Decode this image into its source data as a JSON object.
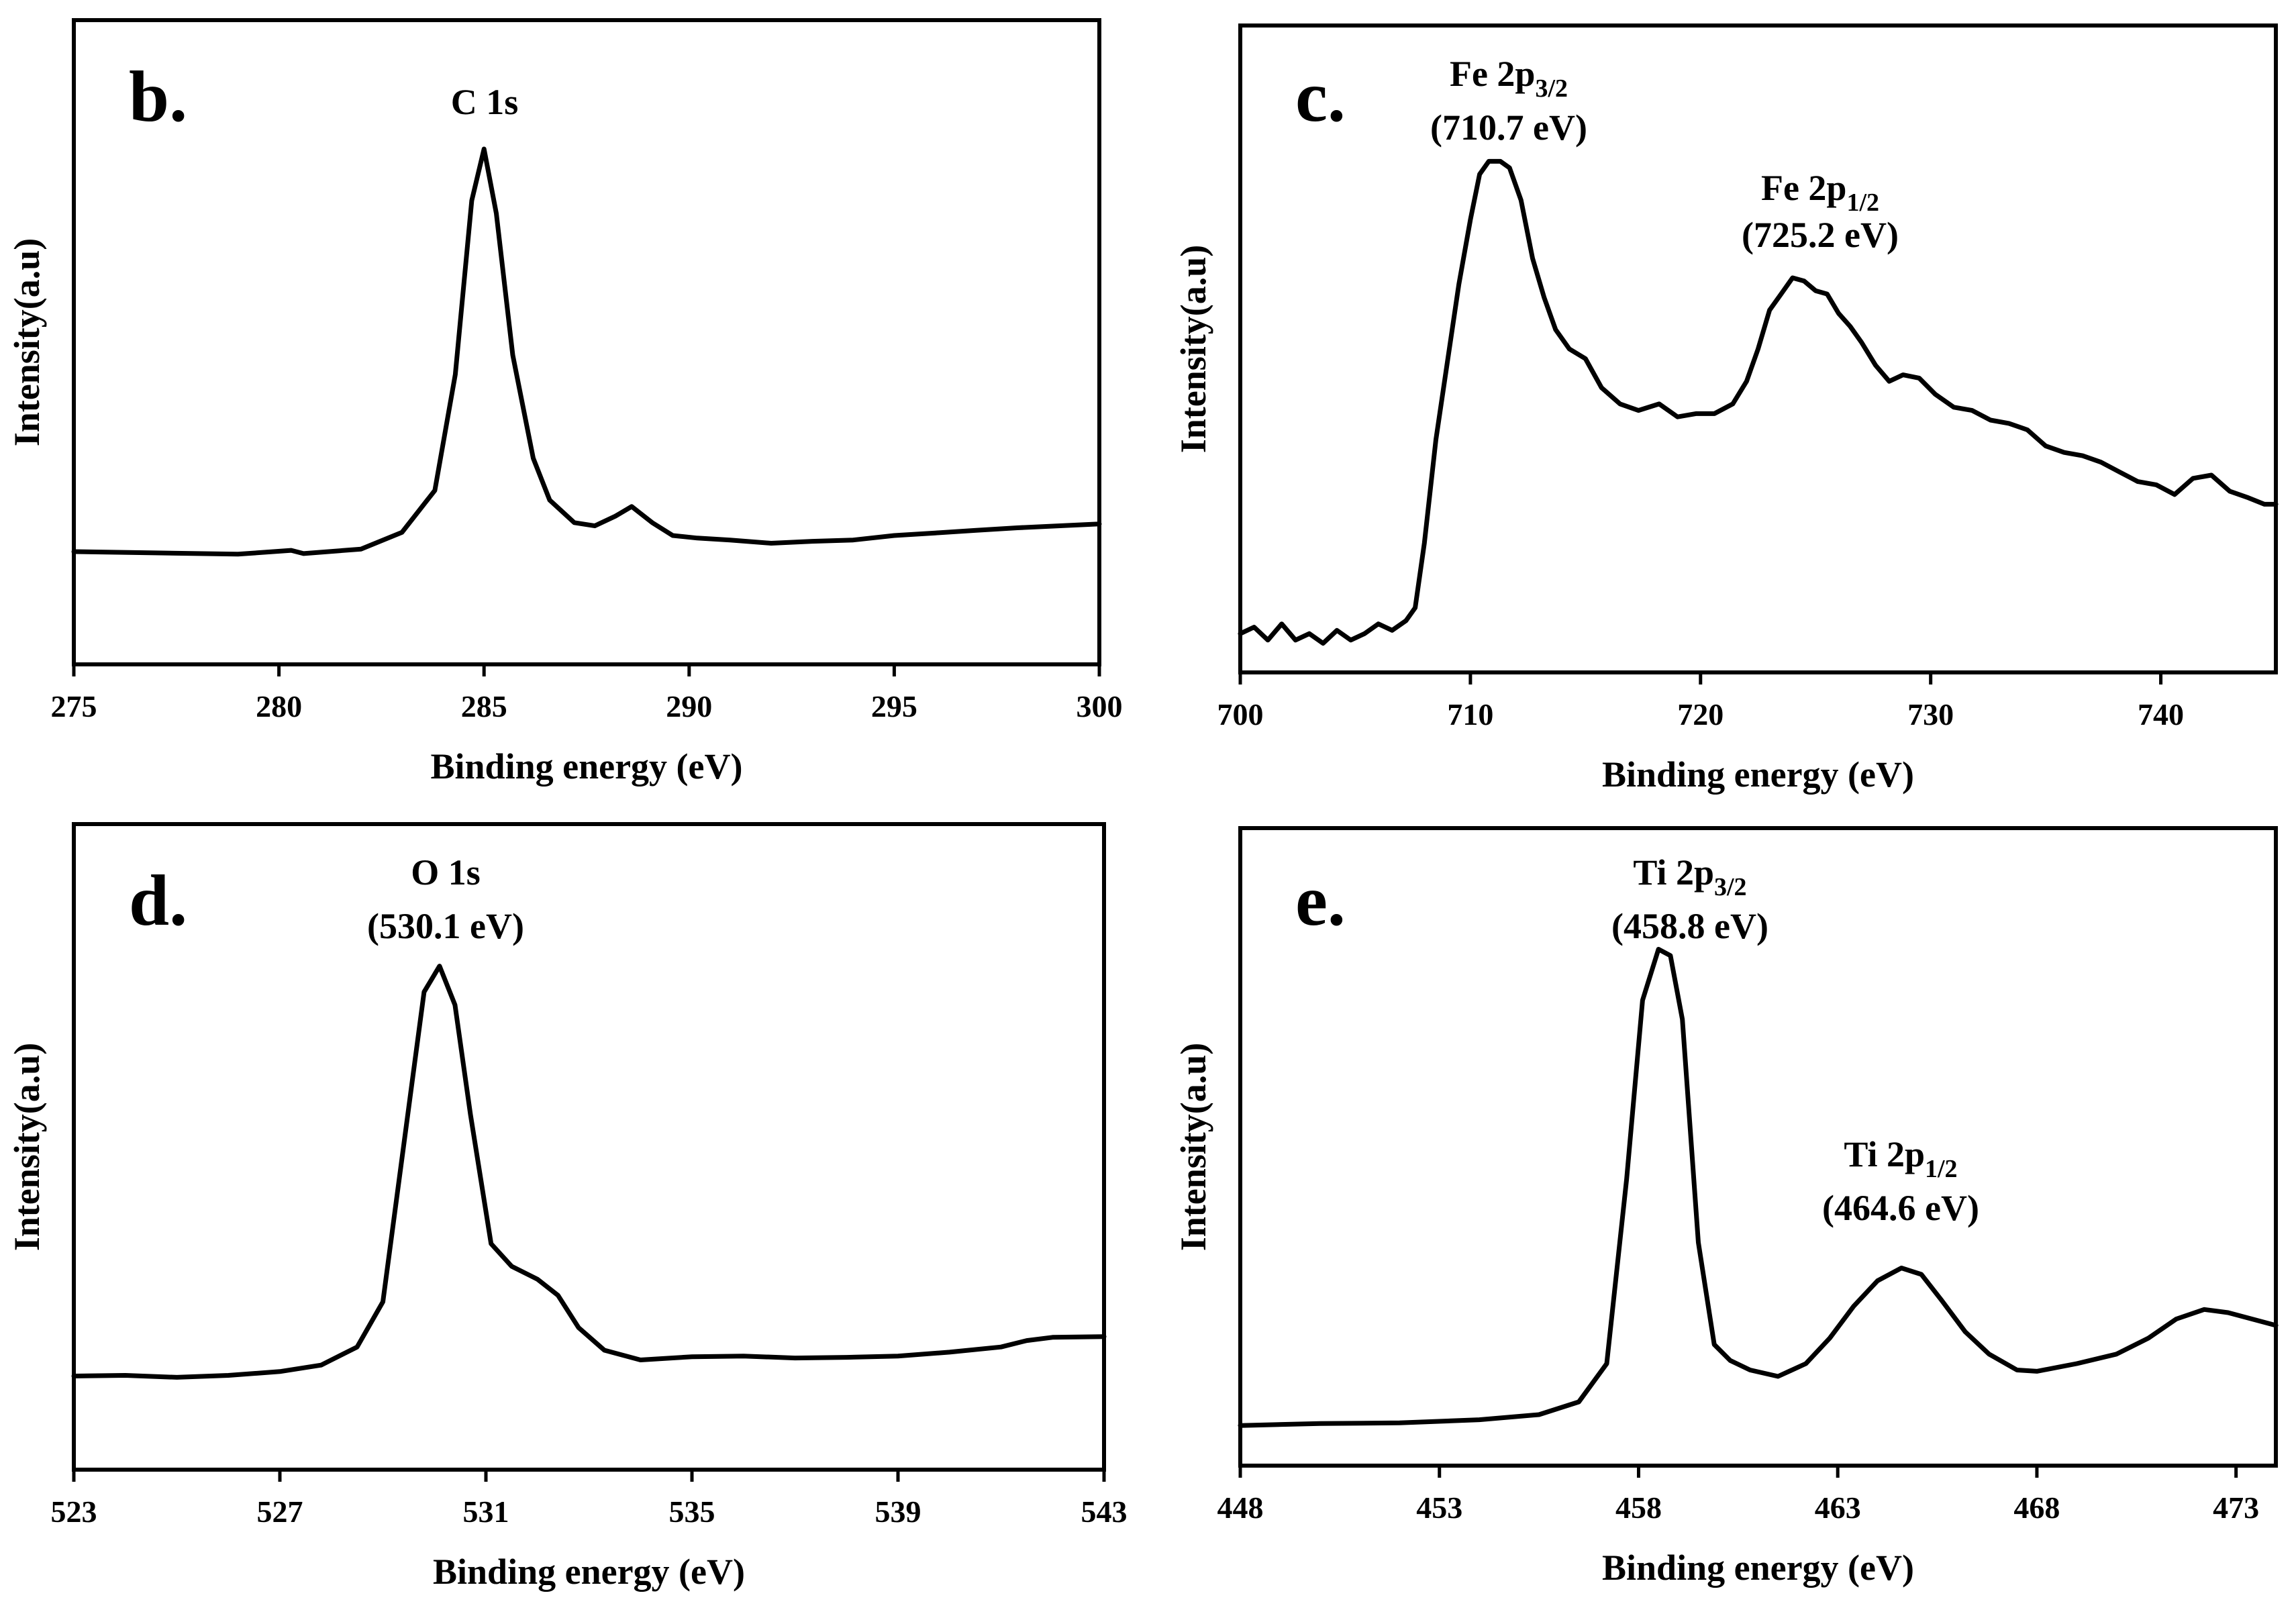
{
  "chart_data": [
    {
      "type": "line",
      "panel_label": "b.",
      "xlabel": "Binding energy (eV)",
      "ylabel": "Intensity(a.u)",
      "xlim": [
        275,
        300
      ],
      "ylim": [
        0,
        100
      ],
      "xticks": [
        "275",
        "280",
        "285",
        "290",
        "295",
        "300"
      ],
      "annotations": [
        {
          "main": "C 1s",
          "sub": "",
          "energy": ""
        }
      ],
      "series": [
        {
          "name": "C 1s",
          "x": [
            275,
            277,
            279,
            280.3,
            280.6,
            282,
            283,
            283.8,
            284.3,
            284.7,
            285,
            285.3,
            285.7,
            286.2,
            286.6,
            287.2,
            287.7,
            288.2,
            288.6,
            289.1,
            289.6,
            290.2,
            291,
            292,
            293,
            294,
            295,
            296,
            297,
            298,
            299,
            300
          ],
          "y": [
            17.5,
            17.3,
            17.1,
            17.7,
            17.2,
            17.9,
            20.5,
            27,
            45,
            72,
            80,
            70,
            48,
            32,
            25.5,
            22,
            21.5,
            23,
            24.5,
            22,
            20,
            19.6,
            19.3,
            18.8,
            19.1,
            19.3,
            20,
            20.4,
            20.8,
            21.2,
            21.5,
            21.8
          ]
        }
      ]
    },
    {
      "type": "line",
      "panel_label": "c.",
      "xlabel": "Binding energy (eV)",
      "ylabel": "Intensity(a.u)",
      "xlim": [
        700,
        745
      ],
      "ylim": [
        0,
        100
      ],
      "xticks": [
        "700",
        "710",
        "720",
        "730",
        "740"
      ],
      "annotations": [
        {
          "main": "Fe 2p",
          "sub": "3/2",
          "energy": "(710.7 eV)"
        },
        {
          "main": "Fe 2p",
          "sub": "1/2",
          "energy": "(725.2 eV)"
        }
      ],
      "series": [
        {
          "name": "Fe 2p",
          "x": [
            700,
            700.6,
            701.2,
            701.8,
            702.4,
            703,
            703.6,
            704.2,
            704.8,
            705.4,
            706,
            706.6,
            707.2,
            707.6,
            708,
            708.5,
            709,
            709.5,
            710,
            710.4,
            710.8,
            711.3,
            711.7,
            712.2,
            712.7,
            713.2,
            713.7,
            714.3,
            715,
            715.7,
            716.5,
            717.3,
            718.2,
            719,
            719.8,
            720.6,
            721.4,
            722,
            722.5,
            723,
            723.5,
            724,
            724.5,
            725,
            725.5,
            726,
            726.5,
            727,
            727.6,
            728.2,
            728.8,
            729.5,
            730.2,
            731,
            731.8,
            732.6,
            733.4,
            734.2,
            735,
            735.8,
            736.6,
            737.4,
            738.2,
            739,
            739.8,
            740.6,
            741.4,
            742.2,
            743,
            743.8,
            744.5,
            745
          ],
          "y": [
            6,
            7,
            5,
            7.5,
            5,
            6,
            4.5,
            6.5,
            5,
            6,
            7.5,
            6.5,
            8,
            10,
            20,
            36,
            48,
            60,
            70,
            77,
            79,
            79,
            78,
            73,
            64,
            58,
            53,
            50,
            48.5,
            44,
            41.5,
            40.5,
            41.5,
            39.5,
            40,
            40,
            41.5,
            45,
            50,
            56,
            58.5,
            61,
            60.5,
            59,
            58.5,
            55.5,
            53.5,
            51,
            47.5,
            45,
            46,
            45.5,
            43,
            41,
            40.5,
            39,
            38.5,
            37.5,
            35,
            34,
            33.5,
            32.5,
            31,
            29.5,
            29,
            27.5,
            30,
            30.5,
            28,
            27,
            26,
            26
          ]
        }
      ]
    },
    {
      "type": "line",
      "panel_label": "d.",
      "xlabel": "Binding energy (eV)",
      "ylabel": "Intensity(a.u)",
      "xlim": [
        523,
        543
      ],
      "ylim": [
        0,
        100
      ],
      "xticks": [
        "523",
        "527",
        "531",
        "535",
        "539",
        "543"
      ],
      "annotations": [
        {
          "main": "O 1s",
          "sub": "",
          "energy": "(530.1 eV)"
        }
      ],
      "series": [
        {
          "name": "O 1s",
          "x": [
            523,
            524,
            525,
            526,
            527,
            527.8,
            528.5,
            529,
            529.4,
            529.8,
            530.1,
            530.4,
            530.7,
            531.1,
            531.5,
            532,
            532.4,
            532.8,
            533.3,
            534,
            535,
            536,
            537,
            538,
            539,
            540,
            541,
            541.5,
            542,
            543
          ],
          "y": [
            14.5,
            14.6,
            14.3,
            14.6,
            15.2,
            16.2,
            19,
            26,
            50,
            74,
            78,
            72,
            55,
            35,
            31.5,
            29.5,
            27,
            22,
            18.5,
            17,
            17.5,
            17.6,
            17.3,
            17.4,
            17.6,
            18.2,
            19,
            20,
            20.5,
            20.6
          ]
        }
      ]
    },
    {
      "type": "line",
      "panel_label": "e.",
      "xlabel": "Binding energy (eV)",
      "ylabel": "Intensity(a.u)",
      "xlim": [
        448,
        474
      ],
      "ylim": [
        0,
        100
      ],
      "xticks": [
        "448",
        "453",
        "458",
        "463",
        "468",
        "473"
      ],
      "annotations": [
        {
          "main": "Ti 2p",
          "sub": "3/2",
          "energy": "(458.8 eV)"
        },
        {
          "main": "Ti 2p",
          "sub": "1/2",
          "energy": "(464.6 eV)"
        }
      ],
      "series": [
        {
          "name": "Ti 2p",
          "x": [
            448,
            450,
            452,
            454,
            455.5,
            456.5,
            457.2,
            457.7,
            458.1,
            458.5,
            458.8,
            459.1,
            459.5,
            459.9,
            460.3,
            460.8,
            461.5,
            462.2,
            462.8,
            463.4,
            464,
            464.6,
            465.1,
            465.6,
            466.2,
            466.8,
            467.5,
            468,
            469,
            470,
            470.8,
            471.5,
            472.2,
            472.8,
            473.4,
            474
          ],
          "y": [
            6.3,
            6.6,
            6.7,
            7.2,
            8,
            10,
            16,
            45,
            73,
            81,
            80,
            70,
            35,
            19,
            16.5,
            15,
            14,
            16,
            20,
            25,
            29,
            31,
            30,
            26,
            21,
            17.5,
            15,
            14.8,
            16,
            17.5,
            20,
            23,
            24.5,
            24,
            23,
            22
          ]
        }
      ]
    }
  ]
}
